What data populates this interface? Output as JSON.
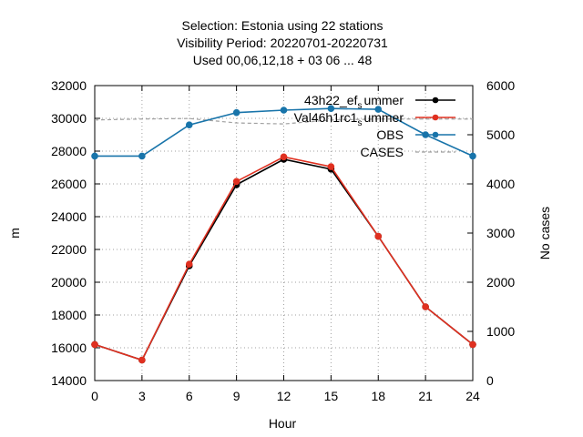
{
  "chart_data": {
    "type": "line",
    "title_lines": [
      "Selection: Estonia using    22 stations",
      "Visibility   Period: 20220701-20220731",
      "Used  00,06,12,18  + 03 06 ... 48"
    ],
    "xlabel": "Hour",
    "ylabel": "m",
    "y2label": "No cases",
    "xlim": [
      0,
      24
    ],
    "ylim": [
      14000,
      32000
    ],
    "y2lim": [
      0,
      6000
    ],
    "xticks": [
      0,
      3,
      6,
      9,
      12,
      15,
      18,
      21,
      24
    ],
    "yticks": [
      14000,
      16000,
      18000,
      20000,
      22000,
      24000,
      26000,
      28000,
      30000,
      32000
    ],
    "y2ticks": [
      0,
      1000,
      2000,
      3000,
      4000,
      5000,
      6000
    ],
    "grid": true,
    "legend_position": "top-right",
    "x": [
      0,
      3,
      6,
      9,
      12,
      15,
      18,
      21,
      24
    ],
    "series": [
      {
        "name": "43h22_ef",
        "name_sub": "s",
        "name_tail": "ummer",
        "axis": "y",
        "color": "#000000",
        "values": [
          16200,
          15250,
          21000,
          25950,
          27500,
          26900,
          22800,
          18500,
          16200
        ]
      },
      {
        "name": "Val46h1rc1",
        "name_sub": "s",
        "name_tail": "ummer",
        "axis": "y",
        "color": "#e03020",
        "values": [
          16200,
          15250,
          21100,
          26150,
          27650,
          27050,
          22800,
          18500,
          16200
        ]
      },
      {
        "name": "OBS",
        "axis": "y",
        "color": "#1874aa",
        "values": [
          27700,
          27700,
          29600,
          30350,
          30500,
          30600,
          30550,
          29000,
          27700
        ]
      },
      {
        "name": "CASES",
        "axis": "y2",
        "color": "#a0a0a0",
        "dashed": true,
        "values": [
          5300,
          5320,
          5330,
          5240,
          5220,
          5300,
          5320,
          5320,
          5320
        ]
      }
    ]
  }
}
